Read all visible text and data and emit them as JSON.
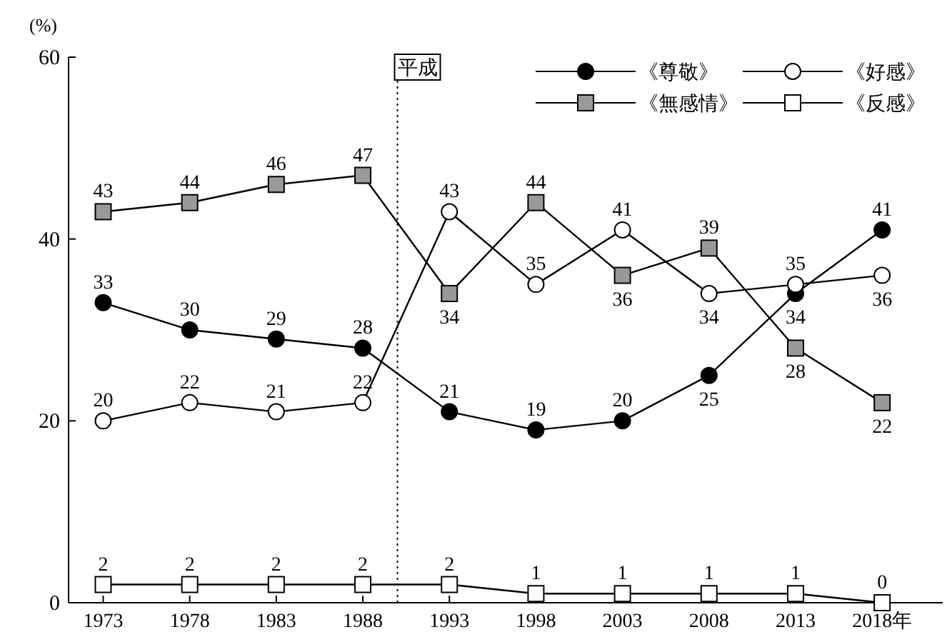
{
  "chart_data": {
    "type": "line",
    "ylabel": "(%)",
    "x": [
      1973,
      1978,
      1983,
      1988,
      1993,
      1998,
      2003,
      2008,
      2013,
      2018
    ],
    "xlim": [
      1971,
      2021.5
    ],
    "xticks": [
      1973,
      1978,
      1983,
      1988,
      1993,
      1998,
      2003,
      2008,
      2013,
      {
        "value": 2018,
        "label": "2018年"
      }
    ],
    "ylim": [
      0,
      60
    ],
    "yticks": [
      0,
      20,
      40,
      60
    ],
    "grid": false,
    "legend": "top right",
    "data_labels": true,
    "line_style": "solid",
    "ref_lines": [
      {
        "axis": "x",
        "value": 1990,
        "label": "平成",
        "line_style": "dotted"
      }
    ],
    "series": [
      {
        "name": "《尊敬》",
        "color": "#000000",
        "marker": "circle",
        "values": [
          33,
          30,
          29,
          28,
          21,
          19,
          20,
          25,
          34,
          41
        ]
      },
      {
        "name": "《好感》",
        "color": "#ffffff",
        "marker": "circle",
        "values": [
          20,
          22,
          21,
          22,
          43,
          35,
          41,
          34,
          35,
          36
        ]
      },
      {
        "name": "《無感情》",
        "color": "#999999",
        "marker": "square",
        "values": [
          43,
          44,
          46,
          47,
          34,
          44,
          36,
          39,
          28,
          22
        ]
      },
      {
        "name": "《反感》",
        "color": "#ffffff",
        "marker": "square",
        "values": [
          2,
          2,
          2,
          2,
          2,
          1,
          1,
          1,
          1,
          0
        ]
      }
    ]
  }
}
